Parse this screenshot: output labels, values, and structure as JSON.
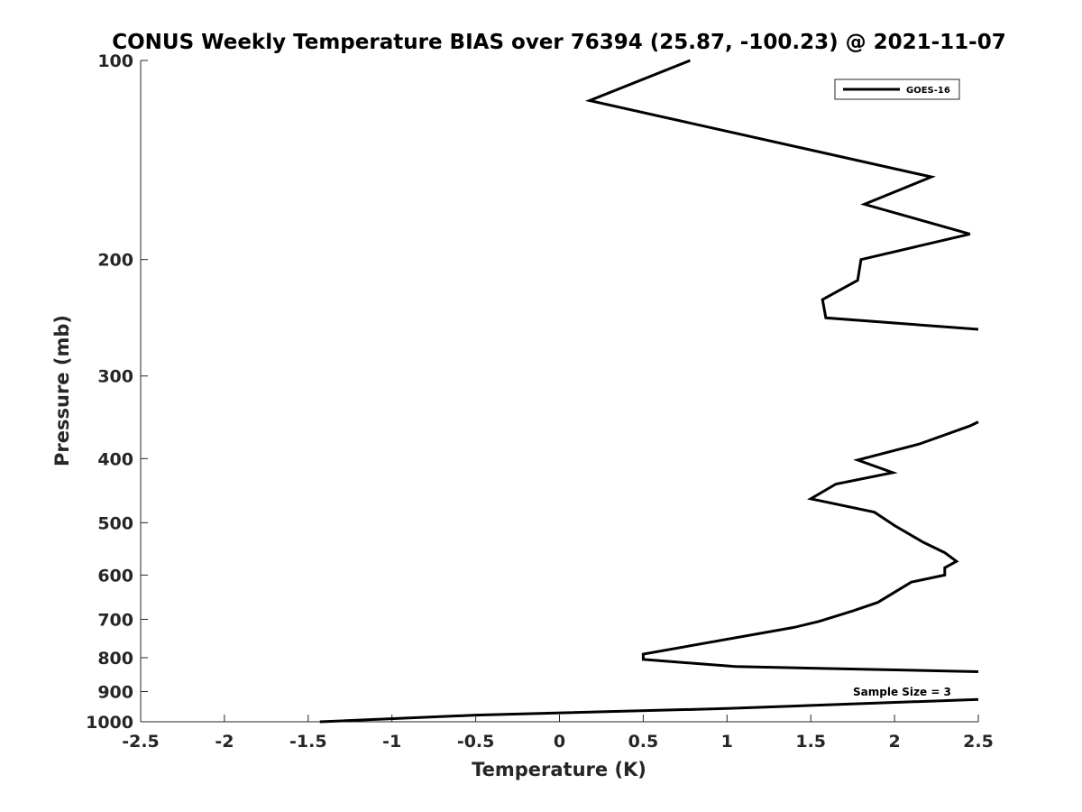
{
  "chart_data": {
    "type": "line",
    "title": "CONUS Weekly Temperature BIAS over 76394 (25.87, -100.23) @ 2021-11-07",
    "xlabel": "Temperature (K)",
    "ylabel": "Pressure (mb)",
    "xlim": [
      -2.5,
      2.5
    ],
    "ylim": [
      100,
      1000
    ],
    "y_scale": "log",
    "y_reversed": true,
    "grid": false,
    "legend_position": "top-right",
    "x_ticks": [
      "-2.5",
      "-2",
      "-1.5",
      "-1",
      "-0.5",
      "0",
      "0.5",
      "1",
      "1.5",
      "2",
      "2.5"
    ],
    "y_ticks": [
      "100",
      "200",
      "300",
      "400",
      "500",
      "600",
      "700",
      "800",
      "900",
      "1000"
    ],
    "annotation": "Sample Size = 3",
    "series": [
      {
        "name": "GOES-16",
        "color": "#000000",
        "segments": [
          [
            {
              "x": 0.78,
              "p": 100
            },
            {
              "x": 0.18,
              "p": 115
            },
            {
              "x": 2.22,
              "p": 150
            },
            {
              "x": 1.82,
              "p": 165
            },
            {
              "x": 2.45,
              "p": 183
            },
            {
              "x": 1.8,
              "p": 200
            },
            {
              "x": 1.78,
              "p": 215
            },
            {
              "x": 1.57,
              "p": 230
            },
            {
              "x": 1.59,
              "p": 245
            },
            {
              "x": 2.5,
              "p": 255
            }
          ],
          [
            {
              "x": 2.5,
              "p": 352
            },
            {
              "x": 2.45,
              "p": 357
            },
            {
              "x": 2.15,
              "p": 380
            },
            {
              "x": 1.78,
              "p": 402
            },
            {
              "x": 1.99,
              "p": 420
            },
            {
              "x": 1.65,
              "p": 437
            },
            {
              "x": 1.5,
              "p": 460
            },
            {
              "x": 1.88,
              "p": 482
            },
            {
              "x": 2.0,
              "p": 505
            },
            {
              "x": 2.17,
              "p": 535
            },
            {
              "x": 2.3,
              "p": 555
            },
            {
              "x": 2.37,
              "p": 572
            },
            {
              "x": 2.3,
              "p": 585
            },
            {
              "x": 2.3,
              "p": 600
            },
            {
              "x": 2.1,
              "p": 615
            },
            {
              "x": 1.9,
              "p": 660
            },
            {
              "x": 1.75,
              "p": 680
            },
            {
              "x": 1.55,
              "p": 705
            },
            {
              "x": 1.4,
              "p": 720
            },
            {
              "x": 0.5,
              "p": 790
            },
            {
              "x": 0.5,
              "p": 805
            },
            {
              "x": 1.05,
              "p": 825
            },
            {
              "x": 2.5,
              "p": 840
            }
          ],
          [
            {
              "x": 2.5,
              "p": 925
            },
            {
              "x": 1.0,
              "p": 955
            },
            {
              "x": -0.5,
              "p": 977
            },
            {
              "x": -1.43,
              "p": 1000
            }
          ]
        ]
      }
    ]
  }
}
